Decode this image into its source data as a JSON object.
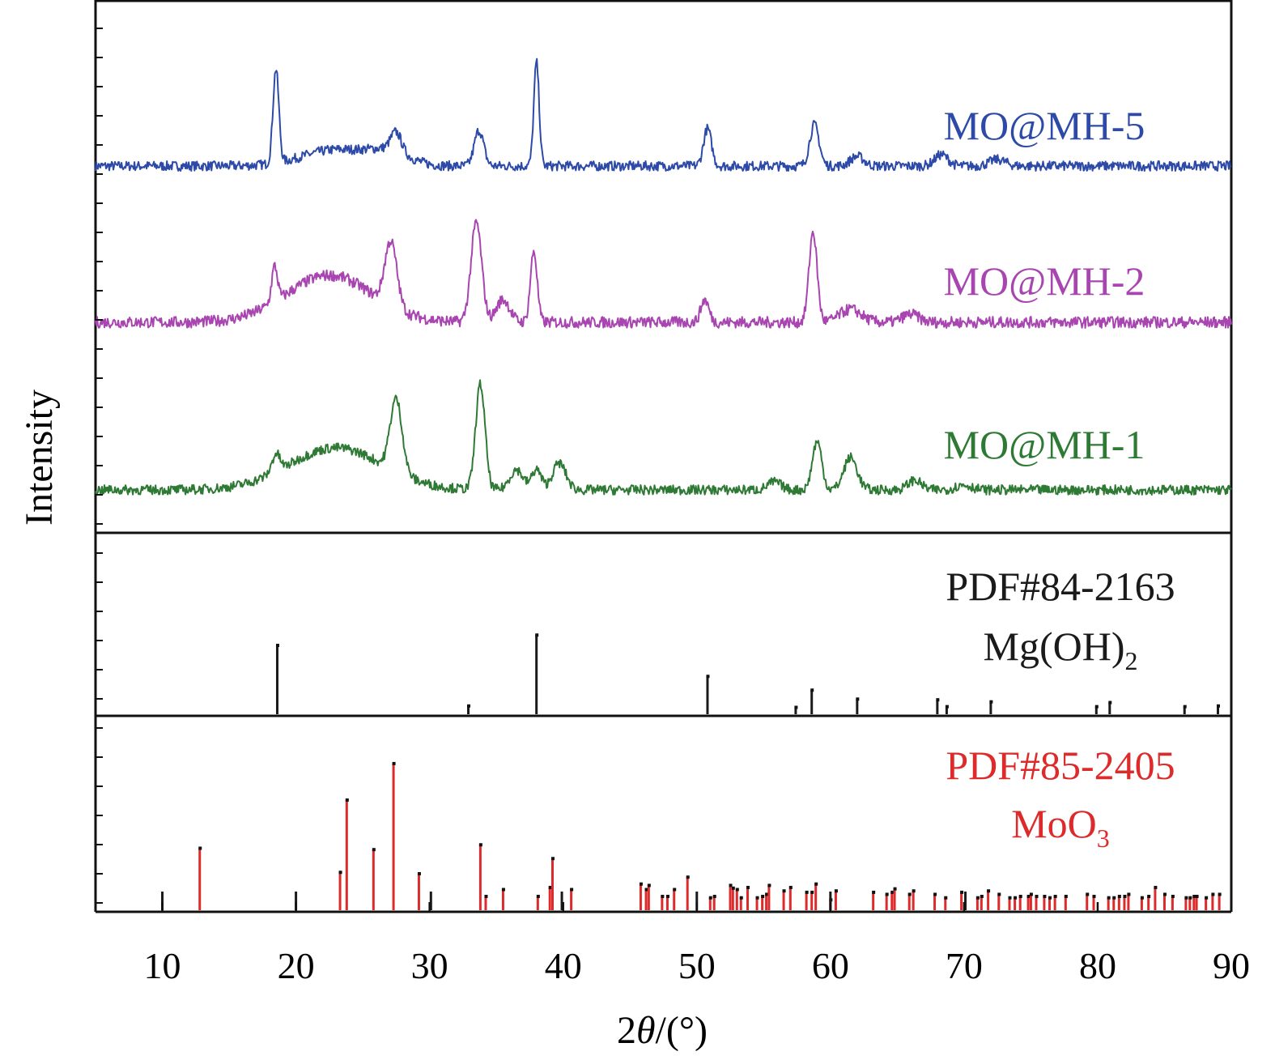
{
  "chart_data": {
    "type": "line",
    "xlabel_prefix": "2",
    "xlabel_theta": "θ",
    "xlabel_suffix": "/(°)",
    "ylabel": "Intensity",
    "xlim": [
      5,
      90
    ],
    "xticks": [
      10,
      20,
      30,
      40,
      50,
      60,
      70,
      80,
      90
    ],
    "colors": {
      "mo5": "#2d4aa8",
      "mo2": "#a845b0",
      "mo1": "#2e7a34",
      "mgoh": "#1a1a1a",
      "moo3": "#dd2b2b",
      "minor": "#1a1a1a"
    },
    "series": [
      {
        "name": "MO@MH-5",
        "color_key": "mo5",
        "baseline": 70,
        "noise": 6,
        "humps": [
          [
            23,
            2.5,
            20
          ],
          [
            27,
            1.5,
            15
          ]
        ],
        "peaks": [
          [
            18.5,
            0.22,
            116
          ],
          [
            27.5,
            0.4,
            24
          ],
          [
            33.7,
            0.35,
            44
          ],
          [
            38.0,
            0.2,
            128
          ],
          [
            50.8,
            0.3,
            46
          ],
          [
            58.8,
            0.35,
            51
          ],
          [
            62.0,
            0.5,
            12
          ],
          [
            68.3,
            0.5,
            14
          ],
          [
            72.5,
            0.6,
            8
          ]
        ]
      },
      {
        "name": "MO@MH-2",
        "color_key": "mo2",
        "baseline": 50,
        "noise": 7,
        "humps": [
          [
            22.5,
            3.2,
            58
          ]
        ],
        "peaks": [
          [
            18.4,
            0.22,
            44
          ],
          [
            27.1,
            0.45,
            80
          ],
          [
            33.5,
            0.4,
            123
          ],
          [
            35.5,
            0.5,
            28
          ],
          [
            37.8,
            0.25,
            88
          ],
          [
            50.6,
            0.3,
            28
          ],
          [
            58.7,
            0.3,
            112
          ],
          [
            61.5,
            0.8,
            16
          ],
          [
            66.0,
            0.6,
            10
          ]
        ]
      },
      {
        "name": "MO@MH-1",
        "color_key": "mo1",
        "baseline": 65,
        "noise": 6,
        "humps": [
          [
            23,
            3.5,
            52
          ]
        ],
        "peaks": [
          [
            18.5,
            0.3,
            22
          ],
          [
            27.5,
            0.45,
            90
          ],
          [
            33.8,
            0.35,
            130
          ],
          [
            36.5,
            0.5,
            25
          ],
          [
            38.0,
            0.35,
            25
          ],
          [
            39.7,
            0.5,
            33
          ],
          [
            55.8,
            0.5,
            10
          ],
          [
            59.0,
            0.35,
            60
          ],
          [
            61.5,
            0.5,
            40
          ],
          [
            66.3,
            0.5,
            12
          ],
          [
            70.0,
            0.6,
            6
          ]
        ]
      }
    ],
    "references": [
      {
        "code": "PDF#84-2163",
        "formula": "Mg(OH)",
        "formula_sub": "2",
        "color_key": "mgoh",
        "lines": [
          [
            18.6,
            100
          ],
          [
            32.9,
            12
          ],
          [
            38.0,
            115
          ],
          [
            50.8,
            55
          ],
          [
            57.4,
            10
          ],
          [
            58.6,
            35
          ],
          [
            62.0,
            22
          ],
          [
            68.0,
            21
          ],
          [
            68.7,
            11
          ],
          [
            72.0,
            18
          ],
          [
            79.9,
            11
          ],
          [
            80.9,
            17
          ],
          [
            86.5,
            11
          ],
          [
            89.0,
            12
          ]
        ]
      },
      {
        "code": "PDF#85-2405",
        "formula": "MoO",
        "formula_sub": "3",
        "color_key": "moo3",
        "lines": [
          [
            12.8,
            90
          ],
          [
            23.3,
            55
          ],
          [
            23.8,
            160
          ],
          [
            25.8,
            88
          ],
          [
            27.3,
            213
          ],
          [
            29.2,
            53
          ],
          [
            33.8,
            95
          ],
          [
            34.2,
            20
          ],
          [
            35.5,
            30
          ],
          [
            38.1,
            20
          ],
          [
            39.0,
            33
          ],
          [
            39.2,
            75
          ],
          [
            40.6,
            30
          ],
          [
            45.8,
            38
          ],
          [
            46.2,
            30
          ],
          [
            46.4,
            36
          ],
          [
            47.4,
            20
          ],
          [
            47.8,
            20
          ],
          [
            48.3,
            30
          ],
          [
            49.3,
            48
          ],
          [
            51.0,
            18
          ],
          [
            51.3,
            20
          ],
          [
            52.5,
            36
          ],
          [
            52.7,
            32
          ],
          [
            53.0,
            30
          ],
          [
            53.3,
            18
          ],
          [
            53.8,
            33
          ],
          [
            54.5,
            18
          ],
          [
            54.9,
            20
          ],
          [
            55.2,
            23
          ],
          [
            55.4,
            36
          ],
          [
            56.5,
            28
          ],
          [
            57.0,
            33
          ],
          [
            58.2,
            26
          ],
          [
            58.6,
            26
          ],
          [
            58.9,
            38
          ],
          [
            60.0,
            15
          ],
          [
            60.4,
            28
          ],
          [
            63.2,
            26
          ],
          [
            64.2,
            23
          ],
          [
            64.6,
            26
          ],
          [
            64.8,
            31
          ],
          [
            65.9,
            23
          ],
          [
            66.2,
            28
          ],
          [
            67.8,
            23
          ],
          [
            68.6,
            18
          ],
          [
            69.8,
            26
          ],
          [
            71.0,
            18
          ],
          [
            71.3,
            20
          ],
          [
            71.8,
            28
          ],
          [
            72.6,
            23
          ],
          [
            73.4,
            18
          ],
          [
            73.8,
            18
          ],
          [
            74.2,
            20
          ],
          [
            74.8,
            20
          ],
          [
            75.0,
            23
          ],
          [
            75.4,
            20
          ],
          [
            76.0,
            20
          ],
          [
            76.4,
            18
          ],
          [
            76.8,
            20
          ],
          [
            77.6,
            20
          ],
          [
            79.2,
            23
          ],
          [
            79.7,
            20
          ],
          [
            80.8,
            18
          ],
          [
            81.2,
            18
          ],
          [
            81.6,
            20
          ],
          [
            82.0,
            20
          ],
          [
            82.3,
            23
          ],
          [
            83.3,
            18
          ],
          [
            83.8,
            20
          ],
          [
            84.3,
            33
          ],
          [
            85.0,
            23
          ],
          [
            85.6,
            20
          ],
          [
            86.6,
            18
          ],
          [
            86.9,
            18
          ],
          [
            87.2,
            20
          ],
          [
            87.4,
            20
          ],
          [
            88.1,
            18
          ],
          [
            88.6,
            23
          ],
          [
            89.1,
            23
          ]
        ]
      }
    ],
    "minor_lines": [
      [
        10.0,
        23
      ],
      [
        20.0,
        23
      ],
      [
        30.1,
        23
      ],
      [
        39.9,
        23
      ],
      [
        50.0,
        23
      ],
      [
        60.0,
        23
      ],
      [
        70.1,
        23
      ]
    ]
  }
}
